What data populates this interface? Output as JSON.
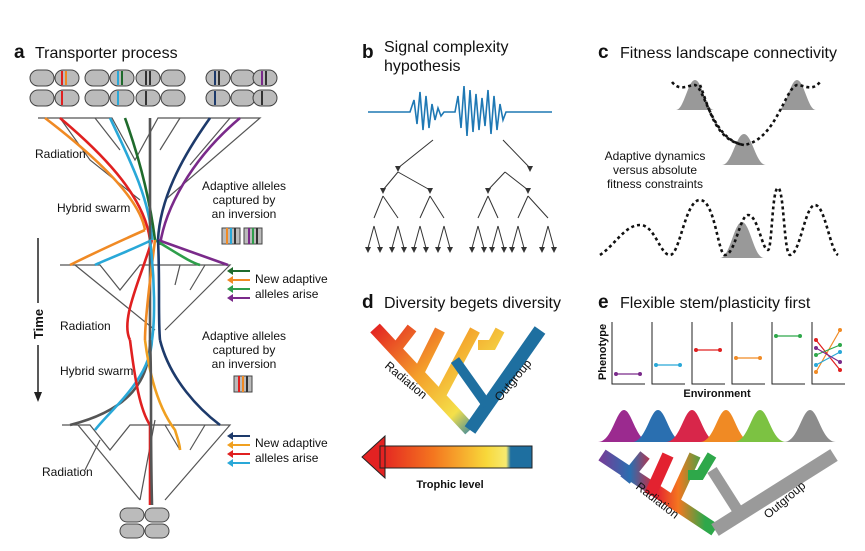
{
  "panels": {
    "a": {
      "letter": "a",
      "title": "Transporter process",
      "labels": {
        "radiation_1": "Radiation",
        "hybrid_swarm_1": "Hybrid swarm",
        "radiation_2": "Radiation",
        "hybrid_swarm_2": "Hybrid swarm",
        "radiation_3": "Radiation",
        "time": "Time"
      },
      "captured_1": [
        "Adaptive alleles",
        "captured by",
        "an inversion"
      ],
      "captured_2": [
        "Adaptive alleles",
        "captured by",
        "an inversion"
      ],
      "new_alleles_1": [
        "New adaptive",
        "alleles arise"
      ],
      "new_alleles_2": [
        "New adaptive",
        "alleles arise"
      ],
      "arrow_colors_1": [
        "#1f6b2c",
        "#f08a24",
        "#2e9e4a",
        "#7a2a8a"
      ],
      "arrow_colors_2": [
        "#1d3a6b",
        "#f0a020",
        "#e02020",
        "#29a8d8"
      ]
    },
    "b": {
      "letter": "b",
      "title_lines": [
        "Signal complexity",
        "hypothesis"
      ]
    },
    "c": {
      "letter": "c",
      "title": "Fitness landscape connectivity",
      "note_lines": [
        "Adaptive dynamics",
        "versus absolute",
        "fitness constraints"
      ]
    },
    "d": {
      "letter": "d",
      "title": "Diversity begets diversity",
      "radiation_label": "Radiation",
      "outgroup_label": "Outgroup",
      "scale_label": "Trophic level"
    },
    "e": {
      "letter": "e",
      "title": "Flexible stem/plasticity first",
      "ylabel": "Phenotype",
      "xlabel": "Environment",
      "radiation_label": "Radiation",
      "outgroup_label": "Outgroup",
      "mini_plot_colors": [
        "#7a2a8a",
        "#29a8d8",
        "#e02020",
        "#f08a24",
        "#2ea84a"
      ],
      "curve_colors": [
        "#9b2a8f",
        "#2a6fb0",
        "#d8264a",
        "#f08a24",
        "#7cc242",
        "#8c8c8c"
      ]
    }
  }
}
